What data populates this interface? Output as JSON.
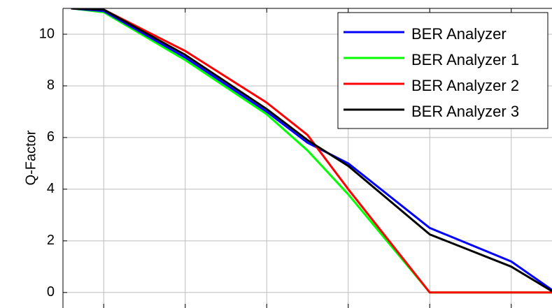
{
  "chart_data": {
    "type": "line",
    "title": "",
    "xlabel": "",
    "ylabel": "Q-Factor",
    "ylim": [
      -0.6,
      11
    ],
    "xlim": [
      0.5,
      6.5
    ],
    "grid": true,
    "legend_position": "top-right",
    "yticks": [
      0,
      2,
      4,
      6,
      8,
      10
    ],
    "xtick_positions": [
      1,
      2,
      3,
      4,
      5,
      6
    ],
    "series": [
      {
        "name": "BER Analyzer",
        "color": "#0000ff",
        "x": [
          0.6,
          1.0,
          2.0,
          3.0,
          3.5,
          4.0,
          5.0,
          6.0,
          6.5
        ],
        "y": [
          11.0,
          10.9,
          9.1,
          7.0,
          5.8,
          5.0,
          2.5,
          1.2,
          0.1
        ]
      },
      {
        "name": "BER Analyzer 1",
        "color": "#00ff00",
        "x": [
          0.6,
          1.0,
          2.0,
          3.0,
          3.5,
          4.0,
          5.0,
          6.0,
          6.5
        ],
        "y": [
          11.0,
          10.85,
          9.0,
          6.9,
          5.5,
          3.8,
          0.0,
          0.0,
          0.0
        ]
      },
      {
        "name": "BER Analyzer 2",
        "color": "#ff0000",
        "x": [
          0.6,
          1.0,
          2.0,
          3.0,
          3.5,
          4.0,
          5.0,
          6.0,
          6.5
        ],
        "y": [
          11.0,
          10.95,
          9.35,
          7.35,
          6.1,
          4.0,
          0.0,
          0.0,
          0.0
        ]
      },
      {
        "name": "BER Analyzer 3",
        "color": "#000000",
        "x": [
          0.6,
          1.0,
          2.0,
          3.0,
          3.5,
          4.0,
          5.0,
          6.0,
          6.5
        ],
        "y": [
          11.0,
          10.95,
          9.2,
          7.1,
          5.9,
          4.9,
          2.25,
          1.0,
          0.05
        ]
      }
    ]
  }
}
